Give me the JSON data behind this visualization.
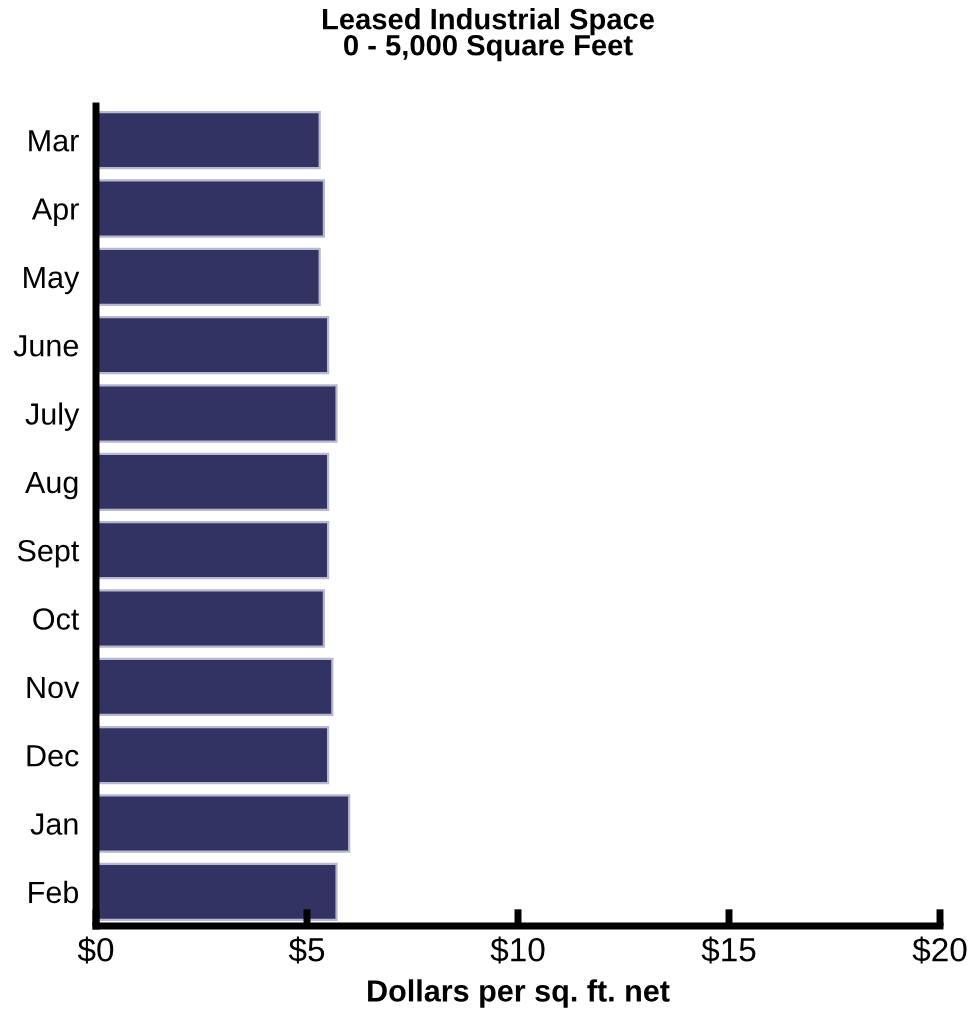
{
  "chart_data": {
    "type": "bar",
    "orientation": "horizontal",
    "title": "Leased Industrial Space\n0 - 5,000 Square Feet",
    "xlabel": "Dollars per sq. ft. net",
    "categories": [
      "Mar",
      "Apr",
      "May",
      "June",
      "July",
      "Aug",
      "Sept",
      "Oct",
      "Nov",
      "Dec",
      "Jan",
      "Feb"
    ],
    "values": [
      5.3,
      5.4,
      5.3,
      5.5,
      5.7,
      5.5,
      5.5,
      5.4,
      5.6,
      5.5,
      6.0,
      5.7
    ],
    "color": "#333363",
    "xlim": [
      0,
      20
    ],
    "xticks": [
      {
        "value": 0,
        "label": "$0"
      },
      {
        "value": 5,
        "label": "$5"
      },
      {
        "value": 10,
        "label": "$10"
      },
      {
        "value": 15,
        "label": "$15"
      },
      {
        "value": 20,
        "label": "$20"
      }
    ],
    "grid": false,
    "legend": false
  }
}
